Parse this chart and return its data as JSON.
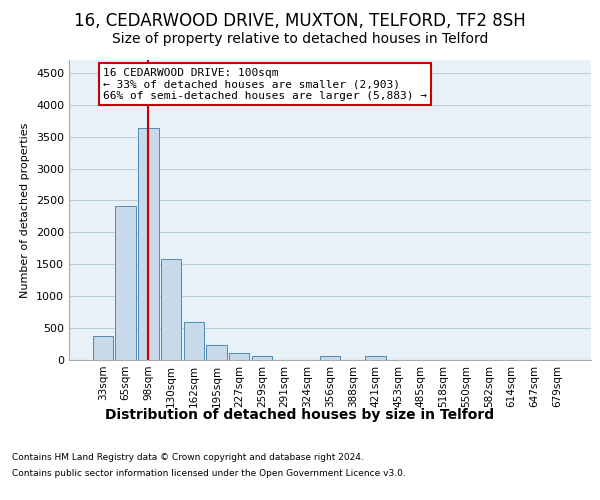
{
  "title1": "16, CEDARWOOD DRIVE, MUXTON, TELFORD, TF2 8SH",
  "title2": "Size of property relative to detached houses in Telford",
  "xlabel": "Distribution of detached houses by size in Telford",
  "ylabel": "Number of detached properties",
  "footer1": "Contains HM Land Registry data © Crown copyright and database right 2024.",
  "footer2": "Contains public sector information licensed under the Open Government Licence v3.0.",
  "categories": [
    "33sqm",
    "65sqm",
    "98sqm",
    "130sqm",
    "162sqm",
    "195sqm",
    "227sqm",
    "259sqm",
    "291sqm",
    "324sqm",
    "356sqm",
    "388sqm",
    "421sqm",
    "453sqm",
    "485sqm",
    "518sqm",
    "550sqm",
    "582sqm",
    "614sqm",
    "647sqm",
    "679sqm"
  ],
  "values": [
    380,
    2420,
    3630,
    1580,
    600,
    240,
    110,
    65,
    0,
    0,
    55,
    0,
    70,
    0,
    0,
    0,
    0,
    0,
    0,
    0,
    0
  ],
  "bar_color": "#c8daea",
  "bar_edge_color": "#4d8ab5",
  "red_line_index": 2,
  "red_line_color": "#cc0000",
  "annotation_text": "16 CEDARWOOD DRIVE: 100sqm\n← 33% of detached houses are smaller (2,903)\n66% of semi-detached houses are larger (5,883) →",
  "annotation_box_color": "#ffffff",
  "annotation_box_edge": "#cc0000",
  "ylim": [
    0,
    4700
  ],
  "yticks": [
    0,
    500,
    1000,
    1500,
    2000,
    2500,
    3000,
    3500,
    4000,
    4500
  ],
  "grid_color": "#b8cfe0",
  "fig_bg_color": "#ffffff",
  "plot_bg_color": "#e8f0f8",
  "title1_fontsize": 12,
  "title2_fontsize": 10,
  "xlabel_fontsize": 10,
  "ylabel_fontsize": 8
}
